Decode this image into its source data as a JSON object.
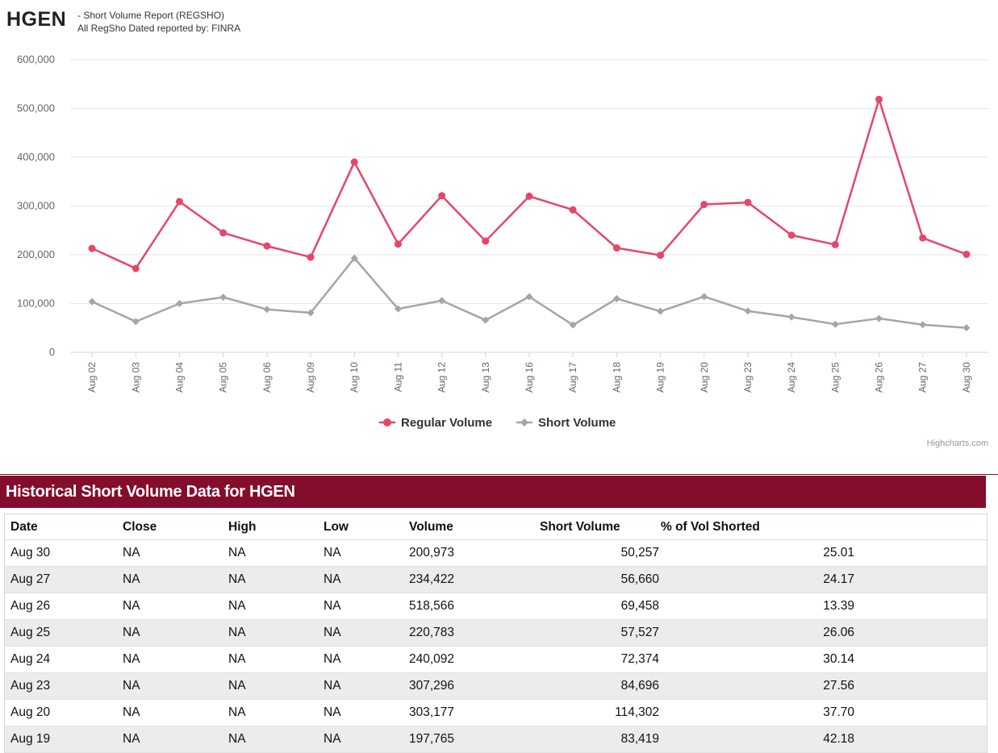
{
  "header": {
    "ticker": "HGEN",
    "subtitle_line1": "- Short Volume Report  (REGSHO)",
    "subtitle_line2": "All RegSho Dated reported by: FINRA"
  },
  "colors": {
    "regular": "#e5476a",
    "short": "#a5a5a5",
    "accent": "#840d2c"
  },
  "chart_data": {
    "type": "line",
    "title": "",
    "xlabel": "",
    "ylabel": "",
    "ylim": [
      0,
      600000
    ],
    "y_ticks": [
      0,
      100000,
      200000,
      300000,
      400000,
      500000,
      600000
    ],
    "y_tick_labels": [
      "0",
      "100,000",
      "200,000",
      "300,000",
      "400,000",
      "500,000",
      "600,000"
    ],
    "categories": [
      "Aug 02",
      "Aug 03",
      "Aug 04",
      "Aug 05",
      "Aug 06",
      "Aug 09",
      "Aug 10",
      "Aug 11",
      "Aug 12",
      "Aug 13",
      "Aug 16",
      "Aug 17",
      "Aug 18",
      "Aug 19",
      "Aug 20",
      "Aug 23",
      "Aug 24",
      "Aug 25",
      "Aug 26",
      "Aug 27",
      "Aug 30"
    ],
    "series": [
      {
        "name": "Regular Volume",
        "marker": "circle",
        "values": [
          213000,
          172000,
          309000,
          245000,
          218000,
          195000,
          390000,
          222000,
          321000,
          228000,
          320000,
          292000,
          214000,
          199000,
          303177,
          307296,
          240092,
          220783,
          518566,
          234422,
          200973
        ]
      },
      {
        "name": "Short Volume",
        "marker": "diamond",
        "values": [
          104000,
          63000,
          100000,
          113000,
          88000,
          81000,
          193000,
          89000,
          106000,
          66000,
          114000,
          56000,
          110000,
          84000,
          114302,
          84696,
          72374,
          57527,
          69458,
          56660,
          50257
        ]
      }
    ],
    "legend": [
      "Regular Volume",
      "Short Volume"
    ],
    "legend_position": "bottom-center",
    "grid": true
  },
  "credit": "Highcharts.com",
  "table": {
    "title": "Historical Short Volume Data for HGEN",
    "columns": [
      "Date",
      "Close",
      "High",
      "Low",
      "Volume",
      "Short Volume",
      "% of Vol Shorted"
    ],
    "rows": [
      [
        "Aug 30",
        "NA",
        "NA",
        "NA",
        "200,973",
        "50,257",
        "25.01"
      ],
      [
        "Aug 27",
        "NA",
        "NA",
        "NA",
        "234,422",
        "56,660",
        "24.17"
      ],
      [
        "Aug 26",
        "NA",
        "NA",
        "NA",
        "518,566",
        "69,458",
        "13.39"
      ],
      [
        "Aug 25",
        "NA",
        "NA",
        "NA",
        "220,783",
        "57,527",
        "26.06"
      ],
      [
        "Aug 24",
        "NA",
        "NA",
        "NA",
        "240,092",
        "72,374",
        "30.14"
      ],
      [
        "Aug 23",
        "NA",
        "NA",
        "NA",
        "307,296",
        "84,696",
        "27.56"
      ],
      [
        "Aug 20",
        "NA",
        "NA",
        "NA",
        "303,177",
        "114,302",
        "37.70"
      ],
      [
        "Aug 19",
        "NA",
        "NA",
        "NA",
        "197,765",
        "83,419",
        "42.18"
      ]
    ]
  }
}
